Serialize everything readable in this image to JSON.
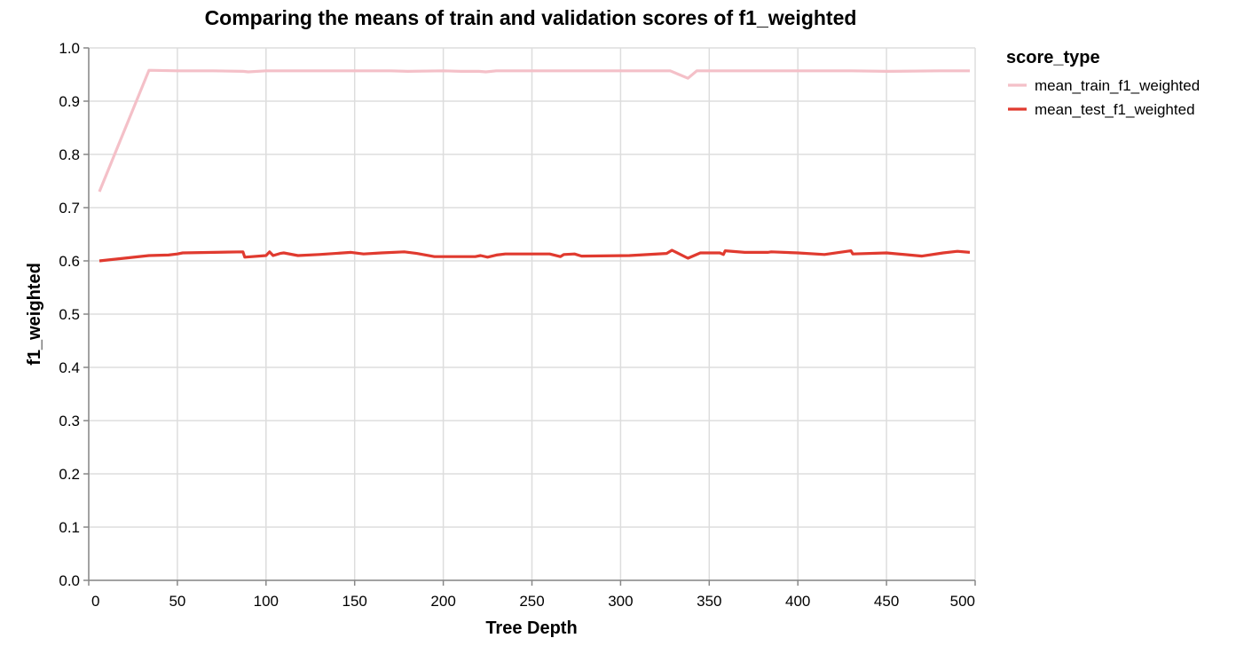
{
  "chart_data": {
    "type": "line",
    "title": "Comparing the means of train and validation scores of f1_weighted",
    "xlabel": "Tree Depth",
    "ylabel": "f1_weighted",
    "xlim": [
      0,
      500
    ],
    "ylim": [
      0,
      1
    ],
    "x_ticks": [
      "0",
      "50",
      "100",
      "150",
      "200",
      "250",
      "300",
      "350",
      "400",
      "450",
      "500"
    ],
    "y_ticks": [
      "0.0",
      "0.1",
      "0.2",
      "0.3",
      "0.4",
      "0.5",
      "0.6",
      "0.7",
      "0.8",
      "0.9",
      "1.0"
    ],
    "grid": true,
    "legend_title": "score_type",
    "legend_position": "right",
    "series": [
      {
        "name": "mean_train_f1_weighted",
        "color": "#f4c0c8",
        "points": [
          [
            6,
            0.73
          ],
          [
            34,
            0.958
          ],
          [
            50,
            0.957
          ],
          [
            70,
            0.957
          ],
          [
            87,
            0.956
          ],
          [
            90,
            0.955
          ],
          [
            100,
            0.957
          ],
          [
            120,
            0.957
          ],
          [
            150,
            0.957
          ],
          [
            170,
            0.957
          ],
          [
            180,
            0.956
          ],
          [
            200,
            0.957
          ],
          [
            210,
            0.956
          ],
          [
            220,
            0.956
          ],
          [
            224,
            0.955
          ],
          [
            230,
            0.957
          ],
          [
            250,
            0.957
          ],
          [
            280,
            0.957
          ],
          [
            300,
            0.957
          ],
          [
            328,
            0.957
          ],
          [
            338,
            0.943
          ],
          [
            343,
            0.957
          ],
          [
            360,
            0.957
          ],
          [
            400,
            0.957
          ],
          [
            430,
            0.957
          ],
          [
            450,
            0.956
          ],
          [
            480,
            0.957
          ],
          [
            497,
            0.957
          ]
        ]
      },
      {
        "name": "mean_test_f1_weighted",
        "color": "#e03a2f",
        "points": [
          [
            6,
            0.6
          ],
          [
            20,
            0.605
          ],
          [
            34,
            0.61
          ],
          [
            45,
            0.611
          ],
          [
            50,
            0.613
          ],
          [
            53,
            0.615
          ],
          [
            87,
            0.617
          ],
          [
            88,
            0.607
          ],
          [
            100,
            0.61
          ],
          [
            102,
            0.617
          ],
          [
            104,
            0.61
          ],
          [
            108,
            0.614
          ],
          [
            110,
            0.615
          ],
          [
            118,
            0.61
          ],
          [
            130,
            0.612
          ],
          [
            148,
            0.616
          ],
          [
            155,
            0.613
          ],
          [
            165,
            0.615
          ],
          [
            178,
            0.617
          ],
          [
            185,
            0.614
          ],
          [
            195,
            0.608
          ],
          [
            218,
            0.608
          ],
          [
            221,
            0.61
          ],
          [
            225,
            0.607
          ],
          [
            230,
            0.611
          ],
          [
            235,
            0.613
          ],
          [
            260,
            0.613
          ],
          [
            266,
            0.608
          ],
          [
            268,
            0.612
          ],
          [
            274,
            0.613
          ],
          [
            278,
            0.609
          ],
          [
            305,
            0.61
          ],
          [
            326,
            0.614
          ],
          [
            329,
            0.62
          ],
          [
            338,
            0.605
          ],
          [
            345,
            0.615
          ],
          [
            356,
            0.615
          ],
          [
            358,
            0.612
          ],
          [
            359,
            0.619
          ],
          [
            370,
            0.616
          ],
          [
            383,
            0.616
          ],
          [
            385,
            0.617
          ],
          [
            400,
            0.615
          ],
          [
            415,
            0.612
          ],
          [
            430,
            0.619
          ],
          [
            431,
            0.613
          ],
          [
            450,
            0.615
          ],
          [
            470,
            0.609
          ],
          [
            482,
            0.615
          ],
          [
            490,
            0.618
          ],
          [
            497,
            0.616
          ]
        ]
      }
    ]
  }
}
